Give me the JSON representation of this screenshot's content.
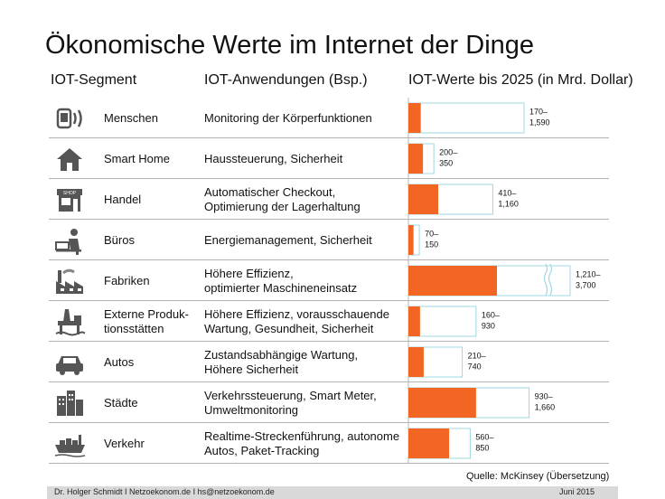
{
  "title": "Ökonomische Werte im Internet der Dinge",
  "headers": {
    "segment": "IOT-Segment",
    "applications": "IOT-Anwendungen (Bsp.)",
    "values": "IOT-Werte bis 2025 (in Mrd. Dollar)"
  },
  "rows": [
    {
      "segment": [
        "Menschen"
      ],
      "application": [
        "Monitoring der Körperfunktionen"
      ],
      "icon": "wearable-icon",
      "label": [
        "170–",
        "1,590"
      ]
    },
    {
      "segment": [
        "Smart Home"
      ],
      "application": [
        "Haussteuerung, Sicherheit"
      ],
      "icon": "house-icon",
      "label": [
        "200–",
        "350"
      ]
    },
    {
      "segment": [
        "Handel"
      ],
      "application": [
        "Automatischer Checkout,",
        "Optimierung der Lagerhaltung"
      ],
      "icon": "shop-icon",
      "label": [
        "410–",
        "1,160"
      ]
    },
    {
      "segment": [
        "Büros"
      ],
      "application": [
        "Energiemanagement, Sicherheit"
      ],
      "icon": "office-worker-icon",
      "label": [
        "70–",
        "150"
      ]
    },
    {
      "segment": [
        "Fabriken"
      ],
      "application": [
        "Höhere Effizienz,",
        "optimierter Maschineneinsatz"
      ],
      "icon": "factory-icon",
      "label": [
        "1,210–",
        "3,700"
      ]
    },
    {
      "segment": [
        "Externe Produk-",
        "tionsstätten"
      ],
      "application": [
        "Höhere Effizienz, vorausschauende",
        "Wartung, Gesundheit, Sicherheit"
      ],
      "icon": "oil-rig-icon",
      "label": [
        "160–",
        "930"
      ]
    },
    {
      "segment": [
        "Autos"
      ],
      "application": [
        "Zustandsabhängige Wartung,",
        "Höhere Sicherheit"
      ],
      "icon": "car-icon",
      "label": [
        "210–",
        "740"
      ]
    },
    {
      "segment": [
        "Städte"
      ],
      "application": [
        "Verkehrssteuerung, Smart Meter,",
        "Umweltmonitoring"
      ],
      "icon": "city-icon",
      "label": [
        "930–",
        "1,660"
      ]
    },
    {
      "segment": [
        "Verkehr"
      ],
      "application": [
        "Realtime-Streckenführung, autonome",
        "Autos, Paket-Tracking"
      ],
      "icon": "ship-icon",
      "label": [
        "560–",
        "850"
      ]
    }
  ],
  "chart_data": {
    "type": "bar",
    "orientation": "horizontal",
    "stacking": "range",
    "categories": [
      "Menschen",
      "Smart Home",
      "Handel",
      "Büros",
      "Fabriken",
      "Externe Produktionsstätten",
      "Autos",
      "Städte",
      "Verkehr"
    ],
    "series": [
      {
        "values": [
          170,
          200,
          410,
          70,
          1210,
          160,
          210,
          930,
          560
        ],
        "color": "#f26522"
      },
      {
        "values": [
          1590,
          350,
          1160,
          150,
          3700,
          930,
          740,
          1660,
          850
        ],
        "color": "#ffffff",
        "border": "#9fd8e0"
      }
    ],
    "axis_break": "Fabriken",
    "colors": {
      "low": "#f26522",
      "high_border": "#9fd8e0"
    }
  },
  "source": "Quelle: McKinsey (Übersetzung)",
  "footer": {
    "left": "Dr. Holger Schmidt  I  Netzoekonom.de   I   hs@netzoekonom.de",
    "right": "Juni 2015"
  }
}
